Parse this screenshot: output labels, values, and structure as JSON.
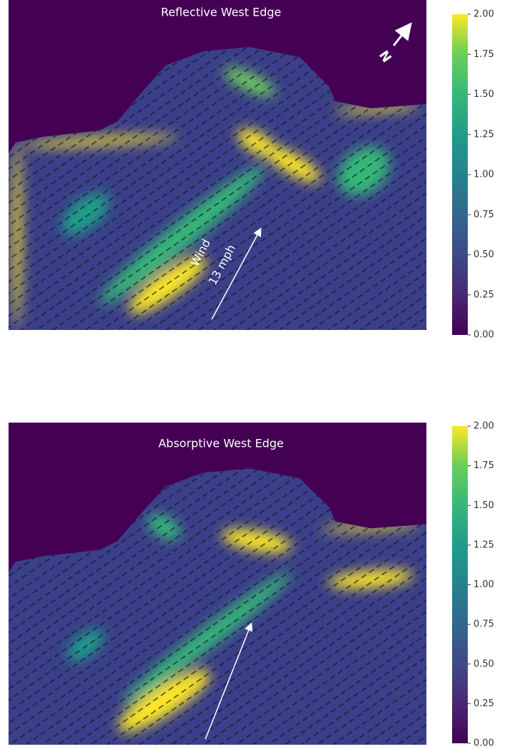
{
  "chart_data": [
    {
      "type": "heatmap",
      "title": "Reflective West Edge",
      "annotations": [
        "Wind",
        "13 mph",
        "N"
      ],
      "clim": [
        0,
        2
      ],
      "cticks": [
        {
          "value": 0,
          "label": "0.00"
        },
        {
          "value": 0.25,
          "label": "0.25"
        },
        {
          "value": 0.5,
          "label": "0.50"
        },
        {
          "value": 0.75,
          "label": "0.75"
        },
        {
          "value": 1,
          "label": "1.00"
        },
        {
          "value": 1.25,
          "label": "1.25"
        },
        {
          "value": 1.5,
          "label": "1.50"
        },
        {
          "value": 1.75,
          "label": "1.75"
        },
        {
          "value": 2,
          "label": "2.00"
        }
      ]
    },
    {
      "type": "heatmap",
      "title": "Absorptive West Edge",
      "clim": [
        0,
        2
      ],
      "cticks": [
        {
          "value": 0,
          "label": "0.00"
        },
        {
          "value": 0.25,
          "label": "0.25"
        },
        {
          "value": 0.5,
          "label": "0.50"
        },
        {
          "value": 0.75,
          "label": "0.75"
        },
        {
          "value": 1,
          "label": "1.00"
        },
        {
          "value": 1.25,
          "label": "1.25"
        },
        {
          "value": 1.5,
          "label": "1.50"
        },
        {
          "value": 1.75,
          "label": "1.75"
        },
        {
          "value": 2,
          "label": "2.00"
        }
      ]
    }
  ]
}
